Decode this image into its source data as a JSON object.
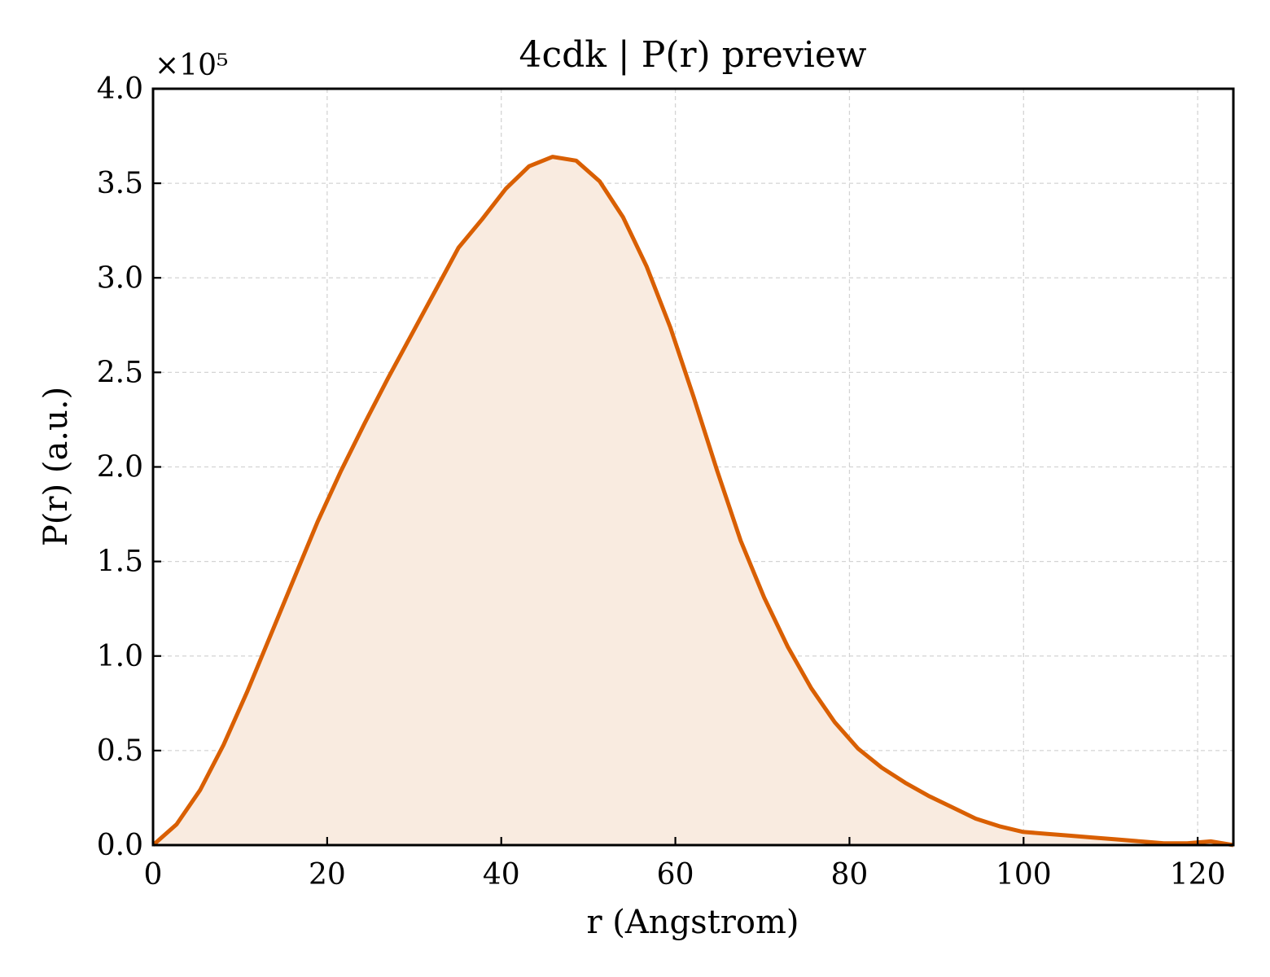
{
  "chart_data": {
    "type": "area",
    "title": "4cdk | P(r) preview",
    "xlabel": "r (Angstrom)",
    "ylabel": "P(r) (a.u.)",
    "y_multiplier_label": "×10⁵",
    "xlim": [
      0,
      124.1
    ],
    "ylim": [
      0,
      4.0
    ],
    "x_ticks": [
      0,
      20,
      40,
      60,
      80,
      100,
      120
    ],
    "y_ticks": [
      0.0,
      0.5,
      1.0,
      1.5,
      2.0,
      2.5,
      3.0,
      3.5,
      4.0
    ],
    "x_tick_labels": [
      "0",
      "20",
      "40",
      "60",
      "80",
      "100",
      "120"
    ],
    "y_tick_labels": [
      "0.0",
      "0.5",
      "1.0",
      "1.5",
      "2.0",
      "2.5",
      "3.0",
      "3.5",
      "4.0"
    ],
    "grid": true,
    "line_color": "#d95f02",
    "fill_color": "#f9ebe0",
    "series": [
      {
        "x": [
          0,
          2.7,
          5.4,
          8.1,
          10.8,
          13.5,
          16.2,
          18.9,
          21.6,
          24.3,
          27.0,
          29.7,
          32.4,
          35.1,
          37.8,
          40.5,
          43.2,
          45.9,
          48.6,
          51.3,
          54.0,
          56.7,
          59.4,
          62.1,
          64.8,
          67.5,
          70.2,
          72.9,
          75.6,
          78.3,
          81.0,
          83.7,
          86.4,
          89.1,
          91.8,
          94.5,
          97.2,
          99.9,
          102.6,
          105.3,
          108.0,
          110.7,
          113.4,
          116.1,
          118.8,
          121.5,
          124.1
        ],
        "y": [
          0.0,
          0.11,
          0.29,
          0.53,
          0.81,
          1.11,
          1.41,
          1.71,
          1.98,
          2.23,
          2.47,
          2.7,
          2.93,
          3.16,
          3.31,
          3.47,
          3.59,
          3.64,
          3.62,
          3.51,
          3.32,
          3.06,
          2.74,
          2.37,
          1.98,
          1.61,
          1.31,
          1.05,
          0.83,
          0.65,
          0.51,
          0.41,
          0.33,
          0.26,
          0.2,
          0.14,
          0.1,
          0.07,
          0.06,
          0.05,
          0.04,
          0.03,
          0.02,
          0.01,
          0.01,
          0.02,
          0.0
        ]
      }
    ]
  }
}
